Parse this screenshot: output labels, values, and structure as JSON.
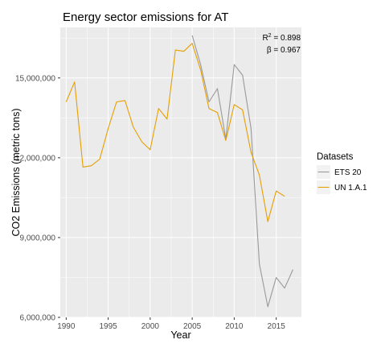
{
  "chart_data": {
    "type": "line",
    "title": "Energy sector emissions for AT",
    "xlabel": "Year",
    "ylabel": "CO2 Emissions (metric tons)",
    "xlim": [
      1989.3,
      2018.0
    ],
    "ylim": [
      6000000,
      16900000
    ],
    "x_ticks": [
      1990,
      1995,
      2000,
      2005,
      2010,
      2015
    ],
    "x_tick_labels": [
      "1990",
      "1995",
      "2000",
      "2005",
      "2010",
      "2015"
    ],
    "y_ticks": [
      6000000,
      9000000,
      12000000,
      15000000
    ],
    "y_tick_labels": [
      "6,000,000",
      "9,000,000",
      "12,000,000",
      "15,000,000"
    ],
    "grid": true,
    "legend": {
      "title": "Datasets",
      "position": "right"
    },
    "annotations": {
      "r2_label": "R",
      "r2_sup": "2",
      "r2_value": " = 0.898",
      "beta_text": "β = 0.967"
    },
    "series": [
      {
        "name": "ETS 20",
        "color": "#999999",
        "x": [
          2005,
          2006,
          2007,
          2008,
          2009,
          2010,
          2011,
          2012,
          2013,
          2014,
          2015,
          2016,
          2017
        ],
        "values": [
          16600000,
          15500000,
          14100000,
          14600000,
          12700000,
          15500000,
          15100000,
          13100000,
          8000000,
          6400000,
          7500000,
          7100000,
          7800000
        ]
      },
      {
        "name": "UN 1.A.1",
        "color": "#E69F00",
        "x": [
          1990,
          1991,
          1992,
          1993,
          1994,
          1995,
          1996,
          1997,
          1998,
          1999,
          2000,
          2001,
          2002,
          2003,
          2004,
          2005,
          2006,
          2007,
          2008,
          2009,
          2010,
          2011,
          2012,
          2013,
          2014,
          2015,
          2016
        ],
        "values": [
          14100000,
          14850000,
          11650000,
          11700000,
          11950000,
          13100000,
          14100000,
          14150000,
          13150000,
          12600000,
          12300000,
          13850000,
          13450000,
          16050000,
          16000000,
          16300000,
          15300000,
          13850000,
          13700000,
          12650000,
          14000000,
          13800000,
          12200000,
          11350000,
          9600000,
          10750000,
          10550000
        ]
      }
    ]
  }
}
